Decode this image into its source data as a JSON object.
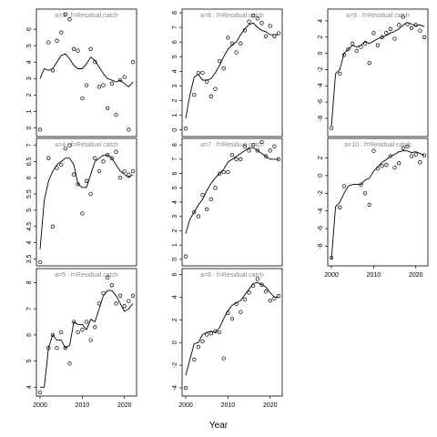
{
  "chart_data": {
    "type": "line",
    "xlabel": "Year",
    "xlim": [
      2000,
      2022
    ],
    "x_ticks": [
      2000,
      2010,
      2020
    ],
    "panels": [
      {
        "title": "a=3  :  f=Residual catch",
        "col": 0,
        "row": 0,
        "show_x_axis": false,
        "ylim": [
          -0.3,
          7.0
        ],
        "y_ticks": [
          0,
          1,
          2,
          3,
          4,
          5,
          6
        ],
        "years": [
          2000,
          2001,
          2002,
          2003,
          2004,
          2005,
          2006,
          2007,
          2008,
          2009,
          2010,
          2011,
          2012,
          2013,
          2014,
          2015,
          2016,
          2017,
          2018,
          2019,
          2020,
          2021,
          2022
        ],
        "fit": [
          3.0,
          3.6,
          3.5,
          3.6,
          4.0,
          4.4,
          4.5,
          4.2,
          3.8,
          3.6,
          3.6,
          3.9,
          4.3,
          4.1,
          3.7,
          3.3,
          3.0,
          2.9,
          2.8,
          2.9,
          2.7,
          2.5,
          2.8
        ],
        "smooth": [],
        "obs": [
          -0.1,
          null,
          5.2,
          3.5,
          5.3,
          5.8,
          6.9,
          6.6,
          4.8,
          4.7,
          1.8,
          2.6,
          4.8,
          4.0,
          2.5,
          2.6,
          1.2,
          2.7,
          0.8,
          2.9,
          3.1,
          -0.1,
          4.0
        ]
      },
      {
        "title": "a=4  :  f=Residual catch",
        "col": 0,
        "row": 1,
        "show_x_axis": false,
        "ylim": [
          3.4,
          7.1
        ],
        "y_ticks": [
          3.5,
          4.0,
          4.5,
          5.0,
          5.5,
          6.0,
          6.5,
          7.0
        ],
        "years": [
          2000,
          2001,
          2002,
          2003,
          2004,
          2005,
          2006,
          2007,
          2008,
          2009,
          2010,
          2011,
          2012,
          2013,
          2014,
          2015,
          2016,
          2017,
          2018,
          2019,
          2020,
          2021,
          2022
        ],
        "fit": [
          3.8,
          5.3,
          5.9,
          6.2,
          6.4,
          6.5,
          6.6,
          6.6,
          6.4,
          5.8,
          5.7,
          5.7,
          6.1,
          6.5,
          6.6,
          6.7,
          6.7,
          6.6,
          6.4,
          6.2,
          6.1,
          6.0,
          6.1
        ],
        "smooth": [],
        "obs": [
          3.4,
          null,
          6.6,
          4.5,
          6.3,
          6.4,
          6.9,
          7.0,
          6.1,
          5.8,
          4.9,
          5.9,
          5.5,
          6.6,
          6.2,
          6.5,
          6.7,
          6.6,
          6.8,
          6.0,
          6.2,
          6.1,
          6.2
        ]
      },
      {
        "title": "a=5  :  f=Residual catch",
        "col": 0,
        "row": 2,
        "show_x_axis": true,
        "ylim": [
          3.8,
          8.4
        ],
        "y_ticks": [
          4,
          5,
          6,
          7,
          8
        ],
        "years": [
          2000,
          2001,
          2002,
          2003,
          2004,
          2005,
          2006,
          2007,
          2008,
          2009,
          2010,
          2011,
          2012,
          2013,
          2014,
          2015,
          2016,
          2017,
          2018,
          2019,
          2020,
          2021,
          2022
        ],
        "fit": [
          4.0,
          4.0,
          5.5,
          6.0,
          5.8,
          5.8,
          5.5,
          5.6,
          6.5,
          6.4,
          6.4,
          6.2,
          6.6,
          6.5,
          7.0,
          7.5,
          7.7,
          7.7,
          7.5,
          7.2,
          6.9,
          7.0,
          7.2
        ],
        "smooth": [],
        "obs": [
          3.8,
          null,
          5.5,
          6.0,
          5.5,
          6.1,
          5.5,
          4.9,
          6.5,
          6.1,
          6.2,
          6.5,
          5.8,
          6.3,
          7.2,
          7.6,
          8.2,
          7.9,
          7.2,
          7.5,
          7.1,
          7.3,
          7.5
        ]
      },
      {
        "title": "a=6  :  f=Residual catch",
        "col": 1,
        "row": 0,
        "show_x_axis": false,
        "ylim": [
          -0.2,
          8.0
        ],
        "y_ticks": [
          0,
          1,
          2,
          3,
          4,
          5,
          6,
          7,
          8
        ],
        "years": [
          2000,
          2001,
          2002,
          2003,
          2004,
          2005,
          2006,
          2007,
          2008,
          2009,
          2010,
          2011,
          2012,
          2013,
          2014,
          2015,
          2016,
          2017,
          2018,
          2019,
          2020,
          2021,
          2022
        ],
        "fit": [
          0.8,
          2.4,
          3.6,
          3.8,
          3.4,
          3.4,
          3.5,
          3.9,
          4.4,
          5.0,
          5.5,
          5.8,
          6.0,
          6.5,
          6.9,
          7.2,
          7.3,
          7.0,
          6.8,
          6.7,
          6.5,
          6.5,
          6.5
        ],
        "smooth": [],
        "obs": [
          0.1,
          null,
          2.4,
          3.9,
          3.9,
          3.3,
          2.3,
          2.8,
          4.7,
          4.2,
          6.3,
          5.9,
          5.3,
          5.9,
          6.8,
          7.4,
          7.8,
          7.6,
          7.3,
          6.4,
          7.1,
          6.4,
          6.6
        ]
      },
      {
        "title": "a=7  :  f=Residual catch",
        "col": 1,
        "row": 1,
        "show_x_axis": false,
        "ylim": [
          -0.2,
          8.2
        ],
        "y_ticks": [
          0,
          1,
          2,
          3,
          4,
          5,
          6,
          7,
          8
        ],
        "years": [
          2000,
          2001,
          2002,
          2003,
          2004,
          2005,
          2006,
          2007,
          2008,
          2009,
          2010,
          2011,
          2012,
          2013,
          2014,
          2015,
          2016,
          2017,
          2018,
          2019,
          2020,
          2021,
          2022
        ],
        "fit": [
          1.8,
          2.8,
          3.3,
          3.8,
          4.2,
          4.8,
          5.3,
          5.7,
          6.0,
          6.3,
          6.8,
          7.0,
          7.2,
          7.4,
          7.6,
          7.8,
          7.8,
          7.6,
          7.4,
          7.2,
          7.0,
          7.0,
          7.0
        ],
        "smooth": [],
        "obs": [
          0.2,
          null,
          3.3,
          3.0,
          4.5,
          3.5,
          4.2,
          5.0,
          6.0,
          6.1,
          6.1,
          7.3,
          7.0,
          7.0,
          7.9,
          7.6,
          8.0,
          7.6,
          8.2,
          7.2,
          7.6,
          7.9,
          7.0
        ]
      },
      {
        "title": "a=8  :  f=Residual catch",
        "col": 1,
        "row": 2,
        "show_x_axis": true,
        "ylim": [
          -4.4,
          6.2
        ],
        "y_ticks": [
          -4,
          -2,
          0,
          2,
          4,
          6
        ],
        "years": [
          2000,
          2001,
          2002,
          2003,
          2004,
          2005,
          2006,
          2007,
          2008,
          2009,
          2010,
          2011,
          2012,
          2013,
          2014,
          2015,
          2016,
          2017,
          2018,
          2019,
          2020,
          2021,
          2022
        ],
        "fit": [
          -2.9,
          -1.5,
          -0.1,
          0.0,
          0.7,
          0.9,
          1.0,
          0.9,
          1.3,
          2.1,
          2.8,
          3.3,
          3.5,
          3.7,
          4.2,
          4.7,
          5.2,
          5.3,
          5.1,
          4.9,
          4.4,
          4.0,
          4.0
        ],
        "smooth": [],
        "obs": [
          -4.0,
          null,
          -1.5,
          -0.4,
          0.1,
          0.7,
          0.8,
          1.0,
          0.9,
          -1.4,
          2.6,
          2.1,
          3.4,
          2.7,
          3.8,
          4.4,
          5.0,
          5.6,
          5.1,
          4.5,
          3.7,
          3.9,
          4.1
        ]
      },
      {
        "title": "a=9  :  f=Residual catch",
        "col": 2,
        "row": 0,
        "show_x_axis": false,
        "ylim": [
          -9.8,
          5.0
        ],
        "y_ticks": [
          -8,
          -6,
          -4,
          -2,
          0,
          2,
          4
        ],
        "years": [
          2000,
          2001,
          2002,
          2003,
          2004,
          2005,
          2006,
          2007,
          2008,
          2009,
          2010,
          2011,
          2012,
          2013,
          2014,
          2015,
          2016,
          2017,
          2018,
          2019,
          2020,
          2021,
          2022
        ],
        "fit": [
          -9.0,
          -2.5,
          -2.0,
          0.0,
          0.5,
          1.0,
          0.8,
          1.0,
          1.5,
          1.2,
          1.5,
          1.8,
          2.0,
          2.2,
          2.5,
          2.7,
          3.0,
          3.5,
          3.8,
          3.6,
          3.4,
          3.5,
          3.3
        ],
        "smooth": [],
        "obs": [
          -9.2,
          null,
          -2.5,
          -0.2,
          0.5,
          1.2,
          0.3,
          0.8,
          1.2,
          -1.2,
          2.5,
          1.0,
          2.0,
          2.5,
          3.0,
          1.8,
          3.5,
          4.5,
          3.6,
          3.1,
          3.5,
          2.8,
          2.0
        ]
      },
      {
        "title": "a=10  :  f=Residual catch",
        "col": 2,
        "row": 1,
        "show_x_axis": true,
        "ylim": [
          -9.8,
          3.8
        ],
        "y_ticks": [
          -8,
          -6,
          -4,
          -2,
          0,
          2
        ],
        "years": [
          2000,
          2001,
          2002,
          2003,
          2004,
          2005,
          2006,
          2007,
          2008,
          2009,
          2010,
          2011,
          2012,
          2013,
          2014,
          2015,
          2016,
          2017,
          2018,
          2019,
          2020,
          2021,
          2022
        ],
        "fit": [
          -9.5,
          -3.5,
          -3.0,
          -2.0,
          -1.2,
          -1.0,
          -1.0,
          -1.0,
          -0.5,
          -0.3,
          0.5,
          1.0,
          1.5,
          1.8,
          2.2,
          2.4,
          2.7,
          2.8,
          2.8,
          2.6,
          2.7,
          2.5,
          2.3
        ],
        "smooth": [],
        "obs": [
          -9.3,
          null,
          -3.6,
          -1.2,
          null,
          null,
          null,
          -1.0,
          -2.0,
          -3.3,
          2.8,
          0.8,
          1.1,
          1.2,
          2.2,
          0.9,
          1.4,
          3.1,
          3.3,
          2.2,
          2.4,
          1.5,
          2.3
        ]
      }
    ]
  }
}
